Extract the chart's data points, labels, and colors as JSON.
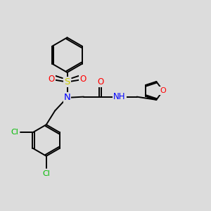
{
  "bg_color": "#dcdcdc",
  "atom_colors": {
    "N": "#0000ff",
    "O": "#ff0000",
    "S": "#cccc00",
    "Cl": "#00bb00",
    "C": "#000000"
  },
  "line_color": "#000000",
  "line_width": 1.4,
  "font_size": 8.5,
  "dbo": 0.06
}
